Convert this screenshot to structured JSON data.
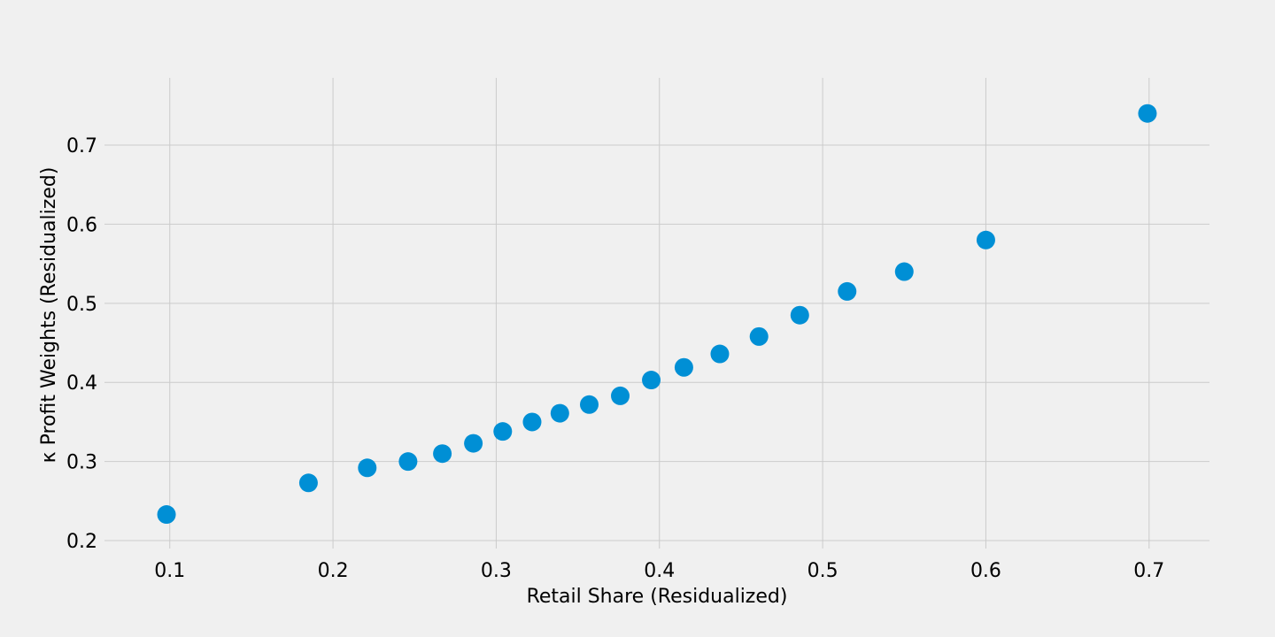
{
  "chart_data": {
    "type": "scatter",
    "title": "",
    "xlabel": "Retail Share (Residualized)",
    "ylabel": "κ Profit Weights (Residualized)",
    "xlim": [
      0.06,
      0.737
    ],
    "ylim": [
      0.19,
      0.785
    ],
    "xticks": [
      0.1,
      0.2,
      0.3,
      0.4,
      0.5,
      0.6,
      0.7
    ],
    "yticks": [
      0.2,
      0.3,
      0.4,
      0.5,
      0.6,
      0.7
    ],
    "xtick_labels": [
      "0.1",
      "0.2",
      "0.3",
      "0.4",
      "0.5",
      "0.6",
      "0.7"
    ],
    "ytick_labels": [
      "0.2",
      "0.3",
      "0.4",
      "0.5",
      "0.6",
      "0.7"
    ],
    "grid": true,
    "marker_color": "#008fd5",
    "background_color": "#f0f0f0",
    "grid_color": "#cbcbcb",
    "series": [
      {
        "points": [
          {
            "x": 0.098,
            "y": 0.233
          },
          {
            "x": 0.185,
            "y": 0.273
          },
          {
            "x": 0.221,
            "y": 0.292
          },
          {
            "x": 0.246,
            "y": 0.3
          },
          {
            "x": 0.267,
            "y": 0.31
          },
          {
            "x": 0.286,
            "y": 0.323
          },
          {
            "x": 0.304,
            "y": 0.338
          },
          {
            "x": 0.322,
            "y": 0.35
          },
          {
            "x": 0.339,
            "y": 0.361
          },
          {
            "x": 0.357,
            "y": 0.372
          },
          {
            "x": 0.376,
            "y": 0.383
          },
          {
            "x": 0.395,
            "y": 0.403
          },
          {
            "x": 0.415,
            "y": 0.419
          },
          {
            "x": 0.437,
            "y": 0.436
          },
          {
            "x": 0.461,
            "y": 0.458
          },
          {
            "x": 0.486,
            "y": 0.485
          },
          {
            "x": 0.515,
            "y": 0.515
          },
          {
            "x": 0.55,
            "y": 0.54
          },
          {
            "x": 0.6,
            "y": 0.58
          },
          {
            "x": 0.699,
            "y": 0.74
          }
        ]
      }
    ]
  }
}
